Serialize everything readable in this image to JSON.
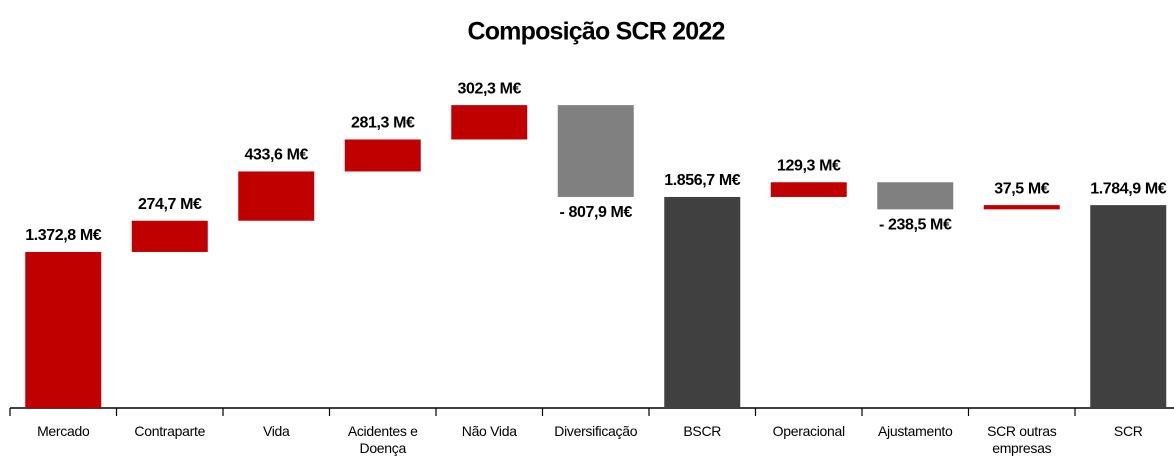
{
  "chart_data": {
    "type": "waterfall",
    "title": "Composição SCR 2022",
    "categories": [
      "Mercado",
      "Contraparte",
      "Vida",
      "Acidentes e Doença",
      "Não Vida",
      "Diversificação",
      "BSCR",
      "Operacional",
      "Ajustamento",
      "SCR outras empresas",
      "SCR"
    ],
    "values": [
      1372.8,
      274.7,
      433.6,
      281.3,
      302.3,
      -807.9,
      1856.7,
      129.3,
      -238.5,
      37.5,
      1784.9
    ],
    "value_labels": [
      "1.372,8 M€",
      "274,7 M€",
      "433,6 M€",
      "281,3 M€",
      "302,3 M€",
      "- 807,9 M€",
      "1.856,7 M€",
      "129,3 M€",
      "- 238,5 M€",
      "37,5 M€",
      "1.784,9 M€"
    ],
    "is_total": [
      false,
      false,
      false,
      false,
      false,
      false,
      true,
      false,
      false,
      false,
      true
    ],
    "colors": {
      "increase": "#c00000",
      "decrease": "#808080",
      "total": "#404040"
    },
    "ylim": [
      0,
      3000
    ]
  }
}
